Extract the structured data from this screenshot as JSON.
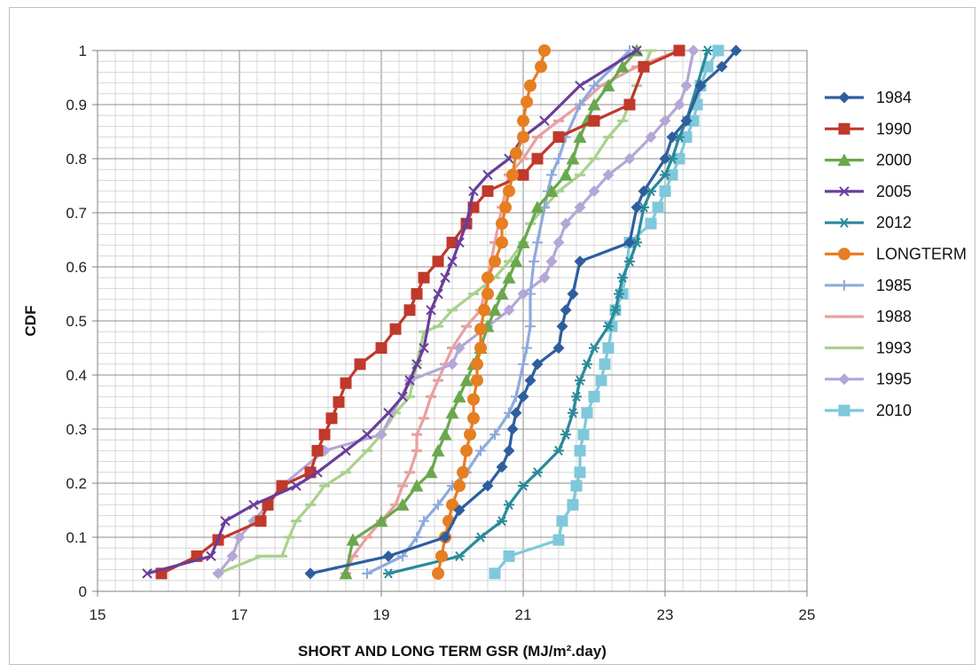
{
  "chart_data": {
    "type": "line",
    "title": "",
    "xlabel": "SHORT AND LONG TERM GSR (MJ/m².day)",
    "ylabel": "CDF",
    "xlim": [
      15,
      25
    ],
    "ylim": [
      0,
      1
    ],
    "x_ticks": [
      "15",
      "17",
      "19",
      "21",
      "23",
      "25"
    ],
    "y_ticks": [
      "0",
      "0.1",
      "0.2",
      "0.3",
      "0.4",
      "0.5",
      "0.6",
      "0.7",
      "0.8",
      "0.9",
      "1"
    ],
    "grid": "major and minor",
    "legend_position": "right",
    "series": [
      {
        "name": "1984",
        "color": "#2E5E9E",
        "marker": "diamond",
        "x": [
          18.0,
          19.1,
          19.9,
          20.1,
          20.5,
          20.7,
          20.8,
          20.85,
          20.9,
          21.0,
          21.1,
          21.2,
          21.5,
          21.55,
          21.6,
          21.7,
          21.8,
          22.5,
          22.6,
          22.7,
          23.0,
          23.1,
          23.3,
          23.5,
          23.8,
          24.0
        ],
        "y": [
          0.033,
          0.065,
          0.1,
          0.15,
          0.195,
          0.23,
          0.26,
          0.3,
          0.33,
          0.36,
          0.39,
          0.42,
          0.45,
          0.49,
          0.52,
          0.55,
          0.61,
          0.645,
          0.71,
          0.74,
          0.8,
          0.84,
          0.87,
          0.935,
          0.97,
          1.0
        ]
      },
      {
        "name": "1990",
        "color": "#C0392B",
        "marker": "square",
        "x": [
          15.9,
          16.4,
          16.7,
          17.3,
          17.4,
          17.6,
          18.0,
          18.1,
          18.2,
          18.3,
          18.4,
          18.5,
          18.7,
          19.0,
          19.2,
          19.4,
          19.5,
          19.6,
          19.8,
          20.0,
          20.2,
          20.3,
          20.5,
          21.0,
          21.2,
          21.5,
          22.0,
          22.5,
          22.7,
          23.2
        ],
        "y": [
          0.033,
          0.065,
          0.095,
          0.13,
          0.16,
          0.195,
          0.22,
          0.26,
          0.29,
          0.32,
          0.35,
          0.385,
          0.42,
          0.45,
          0.485,
          0.52,
          0.55,
          0.58,
          0.61,
          0.645,
          0.68,
          0.71,
          0.74,
          0.77,
          0.8,
          0.84,
          0.87,
          0.9,
          0.97,
          1.0
        ]
      },
      {
        "name": "2000",
        "color": "#6AA84F",
        "marker": "triangle",
        "x": [
          18.5,
          18.6,
          19.0,
          19.3,
          19.5,
          19.7,
          19.8,
          19.9,
          20.0,
          20.1,
          20.2,
          20.3,
          20.4,
          20.5,
          20.6,
          20.7,
          20.8,
          20.9,
          21.0,
          21.2,
          21.4,
          21.6,
          21.7,
          21.8,
          21.9,
          22.0,
          22.2,
          22.4,
          22.6
        ],
        "y": [
          0.033,
          0.095,
          0.13,
          0.16,
          0.195,
          0.22,
          0.26,
          0.29,
          0.33,
          0.36,
          0.39,
          0.42,
          0.45,
          0.49,
          0.52,
          0.55,
          0.58,
          0.61,
          0.645,
          0.71,
          0.74,
          0.77,
          0.8,
          0.84,
          0.87,
          0.9,
          0.935,
          0.97,
          1.0
        ]
      },
      {
        "name": "2005",
        "color": "#6A3D9A",
        "marker": "x",
        "x": [
          15.7,
          16.6,
          16.8,
          17.2,
          17.8,
          18.1,
          18.5,
          18.8,
          19.1,
          19.3,
          19.4,
          19.5,
          19.6,
          19.7,
          19.8,
          19.9,
          20.0,
          20.1,
          20.2,
          20.3,
          20.5,
          20.8,
          21.0,
          21.3,
          21.8,
          22.6
        ],
        "y": [
          0.033,
          0.065,
          0.13,
          0.16,
          0.195,
          0.22,
          0.26,
          0.29,
          0.33,
          0.36,
          0.39,
          0.42,
          0.45,
          0.52,
          0.55,
          0.58,
          0.61,
          0.645,
          0.68,
          0.74,
          0.77,
          0.8,
          0.84,
          0.87,
          0.935,
          1.0
        ]
      },
      {
        "name": "2012",
        "color": "#2A8A9A",
        "marker": "asterisk",
        "x": [
          19.1,
          20.1,
          20.4,
          20.7,
          20.8,
          21.0,
          21.2,
          21.5,
          21.6,
          21.7,
          21.75,
          21.8,
          21.9,
          22.0,
          22.2,
          22.3,
          22.35,
          22.4,
          22.5,
          22.6,
          22.7,
          22.8,
          23.0,
          23.1,
          23.2,
          23.3,
          23.6
        ],
        "y": [
          0.033,
          0.065,
          0.1,
          0.13,
          0.16,
          0.195,
          0.22,
          0.26,
          0.29,
          0.33,
          0.36,
          0.39,
          0.42,
          0.45,
          0.49,
          0.52,
          0.55,
          0.58,
          0.61,
          0.645,
          0.71,
          0.74,
          0.77,
          0.8,
          0.84,
          0.87,
          1.0
        ]
      },
      {
        "name": "LONGTERM",
        "color": "#E67E22",
        "marker": "circle",
        "x": [
          19.8,
          19.85,
          19.9,
          19.95,
          20.0,
          20.1,
          20.15,
          20.2,
          20.25,
          20.3,
          20.3,
          20.35,
          20.35,
          20.4,
          20.4,
          20.45,
          20.5,
          20.5,
          20.6,
          20.7,
          20.7,
          20.75,
          20.8,
          20.85,
          20.9,
          21.0,
          21.0,
          21.05,
          21.1,
          21.25,
          21.3
        ],
        "y": [
          0.033,
          0.065,
          0.1,
          0.13,
          0.16,
          0.195,
          0.22,
          0.26,
          0.29,
          0.32,
          0.355,
          0.39,
          0.42,
          0.45,
          0.485,
          0.52,
          0.55,
          0.58,
          0.61,
          0.645,
          0.68,
          0.71,
          0.74,
          0.77,
          0.81,
          0.84,
          0.87,
          0.905,
          0.935,
          0.97,
          1.0
        ]
      },
      {
        "name": "1985",
        "color": "#8FAADC",
        "marker": "plus",
        "x": [
          18.8,
          19.3,
          19.5,
          19.6,
          19.8,
          20.0,
          20.2,
          20.4,
          20.6,
          20.8,
          20.9,
          21.0,
          21.05,
          21.1,
          21.1,
          21.15,
          21.2,
          21.3,
          21.35,
          21.4,
          21.5,
          21.6,
          21.8,
          22.0,
          22.5
        ],
        "y": [
          0.033,
          0.065,
          0.1,
          0.13,
          0.16,
          0.195,
          0.22,
          0.26,
          0.29,
          0.33,
          0.36,
          0.42,
          0.45,
          0.49,
          0.55,
          0.61,
          0.645,
          0.71,
          0.74,
          0.77,
          0.8,
          0.84,
          0.9,
          0.935,
          1.0
        ]
      },
      {
        "name": "1988",
        "color": "#E8A0A0",
        "marker": "dash",
        "x": [
          18.5,
          18.6,
          18.8,
          19.0,
          19.2,
          19.3,
          19.4,
          19.5,
          19.5,
          19.6,
          19.7,
          19.8,
          19.9,
          20.0,
          20.2,
          20.4,
          20.5,
          20.6,
          20.7,
          20.8,
          21.0,
          21.2,
          21.5,
          21.8,
          22.1,
          22.6,
          23.2
        ],
        "y": [
          0.033,
          0.065,
          0.1,
          0.13,
          0.16,
          0.195,
          0.22,
          0.26,
          0.29,
          0.32,
          0.36,
          0.39,
          0.42,
          0.45,
          0.49,
          0.52,
          0.58,
          0.645,
          0.71,
          0.77,
          0.8,
          0.84,
          0.87,
          0.9,
          0.935,
          0.97,
          1.0
        ]
      },
      {
        "name": "1993",
        "color": "#A9D18E",
        "marker": "dash",
        "x": [
          16.7,
          17.3,
          17.6,
          17.7,
          17.8,
          18.0,
          18.2,
          18.5,
          18.8,
          19.0,
          19.2,
          19.4,
          19.5,
          19.6,
          19.8,
          20.0,
          20.3,
          20.6,
          20.8,
          21.0,
          21.1,
          21.3,
          21.5,
          21.8,
          22.0,
          22.2,
          22.4,
          22.6,
          22.8
        ],
        "y": [
          0.033,
          0.065,
          0.065,
          0.1,
          0.13,
          0.16,
          0.195,
          0.22,
          0.26,
          0.29,
          0.33,
          0.36,
          0.42,
          0.48,
          0.49,
          0.52,
          0.55,
          0.58,
          0.61,
          0.645,
          0.68,
          0.71,
          0.74,
          0.77,
          0.8,
          0.84,
          0.87,
          0.935,
          1.0
        ]
      },
      {
        "name": "1995",
        "color": "#B4A7D6",
        "marker": "diamond",
        "x": [
          16.7,
          16.9,
          17.0,
          17.2,
          17.4,
          17.6,
          18.2,
          19.0,
          19.4,
          20.0,
          20.1,
          20.5,
          20.8,
          21.0,
          21.3,
          21.4,
          21.5,
          21.6,
          21.8,
          22.0,
          22.2,
          22.5,
          22.8,
          23.0,
          23.2,
          23.3,
          23.4
        ],
        "y": [
          0.033,
          0.065,
          0.1,
          0.13,
          0.16,
          0.195,
          0.26,
          0.29,
          0.39,
          0.42,
          0.45,
          0.49,
          0.52,
          0.55,
          0.58,
          0.61,
          0.645,
          0.68,
          0.71,
          0.74,
          0.77,
          0.8,
          0.84,
          0.87,
          0.9,
          0.935,
          1.0
        ]
      },
      {
        "name": "2010",
        "color": "#7FC8DB",
        "marker": "square",
        "x": [
          20.6,
          20.8,
          21.5,
          21.55,
          21.7,
          21.75,
          21.8,
          21.8,
          21.85,
          21.9,
          22.0,
          22.1,
          22.15,
          22.2,
          22.25,
          22.3,
          22.4,
          22.5,
          22.8,
          22.9,
          23.0,
          23.1,
          23.2,
          23.3,
          23.4,
          23.45,
          23.5,
          23.6,
          23.75
        ],
        "y": [
          0.033,
          0.065,
          0.095,
          0.13,
          0.16,
          0.195,
          0.22,
          0.26,
          0.29,
          0.33,
          0.36,
          0.39,
          0.42,
          0.45,
          0.49,
          0.52,
          0.55,
          0.645,
          0.68,
          0.71,
          0.74,
          0.77,
          0.8,
          0.84,
          0.87,
          0.9,
          0.935,
          0.97,
          1.0
        ]
      }
    ]
  }
}
